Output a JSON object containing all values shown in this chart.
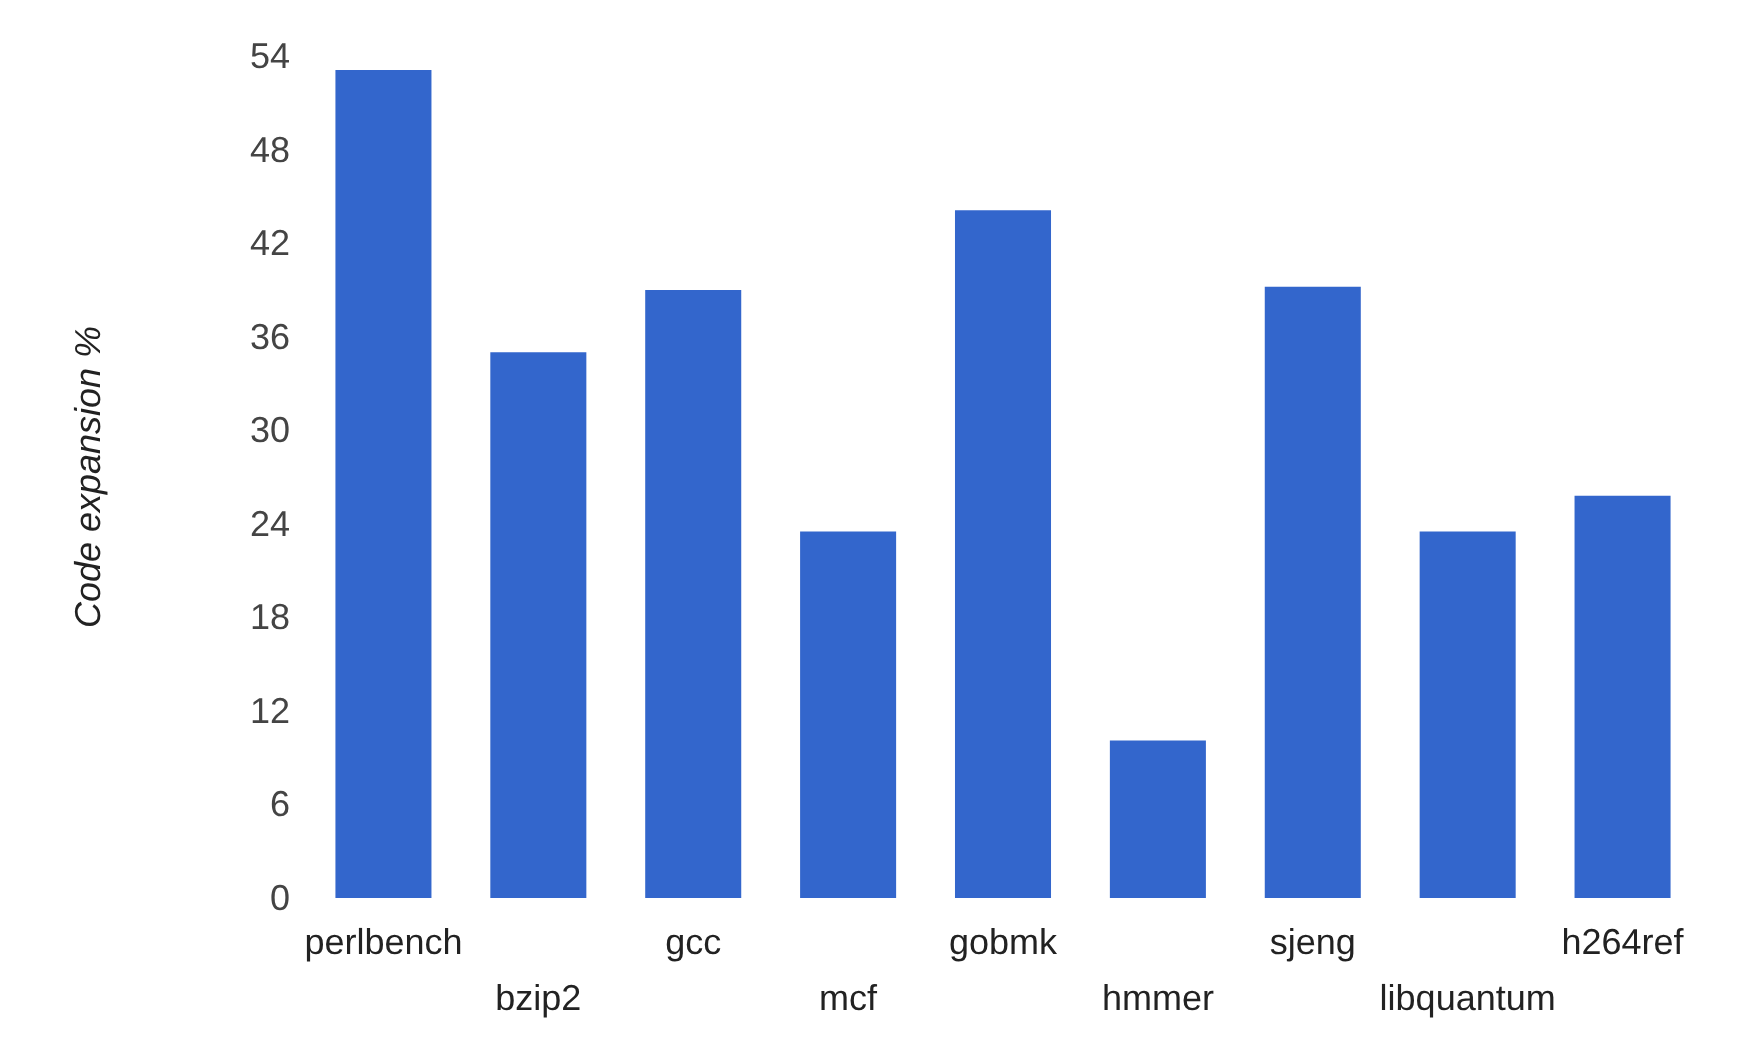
{
  "chart_data": {
    "type": "bar",
    "ylabel": "Code expansion %",
    "categories": [
      "perlbench",
      "bzip2",
      "gcc",
      "mcf",
      "gobmk",
      "hmmer",
      "sjeng",
      "libquantum",
      "h264ref"
    ],
    "values": [
      53.1,
      35.0,
      39.0,
      23.5,
      44.1,
      10.1,
      39.2,
      23.5,
      25.8
    ],
    "color": "#3366cc",
    "ylim": [
      0,
      54
    ],
    "yticks": [
      0,
      6,
      12,
      18,
      24,
      30,
      36,
      42,
      48,
      54
    ],
    "grid": false
  }
}
